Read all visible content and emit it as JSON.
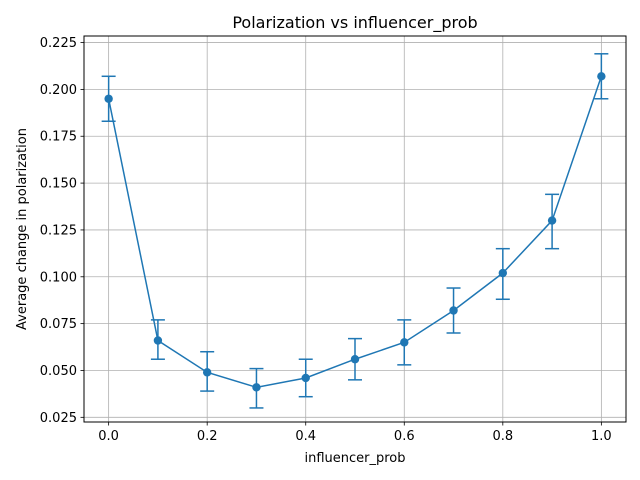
{
  "chart_data": {
    "type": "line",
    "title": "Polarization vs influencer_prob",
    "xlabel": "influencer_prob",
    "ylabel": "Average change in polarization",
    "grid": true,
    "color": "#1f77b4",
    "xlim": [
      -0.05,
      1.05
    ],
    "ylim": [
      0.0225,
      0.2285
    ],
    "x_ticks": [
      "0.0",
      "0.2",
      "0.4",
      "0.6",
      "0.8",
      "1.0"
    ],
    "y_ticks": [
      "0.025",
      "0.050",
      "0.075",
      "0.100",
      "0.125",
      "0.150",
      "0.175",
      "0.200",
      "0.225"
    ],
    "series": [
      {
        "x": [
          0.0,
          0.1,
          0.2,
          0.3,
          0.4,
          0.5,
          0.6,
          0.7,
          0.8,
          0.9,
          1.0
        ],
        "y": [
          0.195,
          0.066,
          0.049,
          0.041,
          0.046,
          0.056,
          0.065,
          0.082,
          0.102,
          0.13,
          0.207
        ],
        "err_low": [
          0.183,
          0.056,
          0.039,
          0.03,
          0.036,
          0.045,
          0.053,
          0.07,
          0.088,
          0.115,
          0.195
        ],
        "err_high": [
          0.207,
          0.077,
          0.06,
          0.051,
          0.056,
          0.067,
          0.077,
          0.094,
          0.115,
          0.144,
          0.219
        ]
      }
    ]
  }
}
